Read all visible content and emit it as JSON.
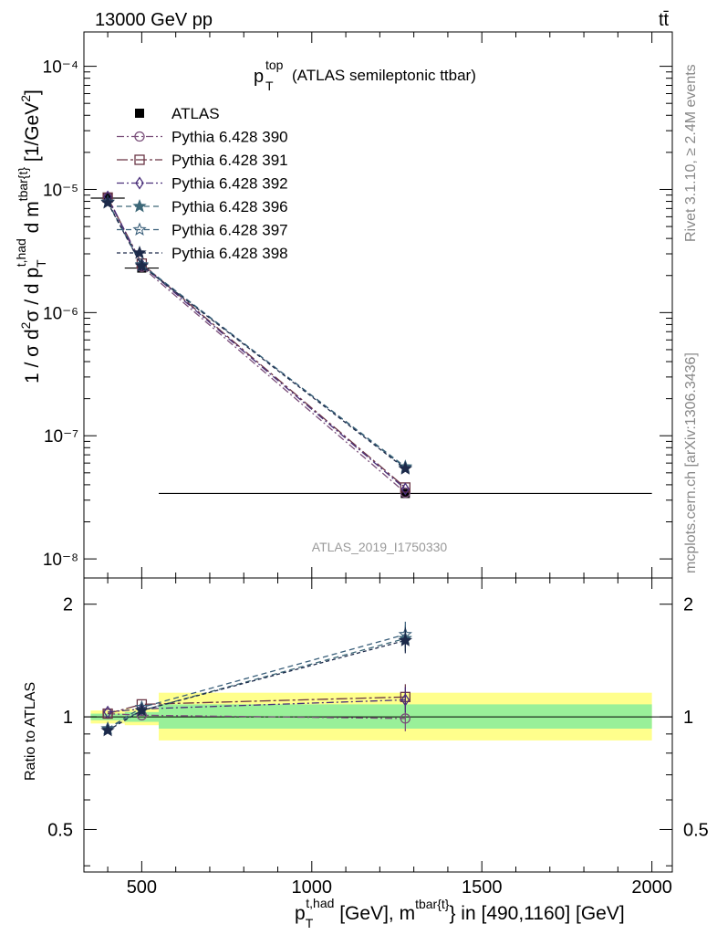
{
  "header": {
    "left": "13000 GeV pp",
    "right": "tt̄"
  },
  "side_labels": {
    "rivet": "Rivet 3.1.10, ≥ 2.4M events",
    "mcplots": "mcplots.cern.ch [arXiv:1306.3436]"
  },
  "plot_title": {
    "main": "p",
    "sup": "top",
    "sub": "T",
    "suffix": "(ATLAS semileptonic ttbar)"
  },
  "watermark": "ATLAS_2019_I1750330",
  "axes": {
    "upper_ylabel": "1 / σ d²σ / d p_T^{t,had} d m^{tbar{t}} [1/GeV²]",
    "lower_ylabel": "Ratio to ATLAS",
    "xlabel": "p_T^{t,had} [GeV], m^{tbar{t}} in [490,1160] [GeV]",
    "x_ticks": [
      "500",
      "1000",
      "1500",
      "2000"
    ],
    "upper_y_ticks": [
      "10⁻⁸",
      "10⁻⁷",
      "10⁻⁶",
      "10⁻⁵",
      "10⁻⁴"
    ],
    "lower_y_ticks": [
      "0.5",
      "1",
      "2"
    ]
  },
  "chart_data": [
    {
      "type": "scatter",
      "panel": "main",
      "log_y": true,
      "xlim": [
        330,
        2060
      ],
      "ylim": [
        7e-09,
        0.00019
      ],
      "x": [
        400,
        500,
        1275
      ],
      "x_err": [
        [
          350,
          450
        ],
        [
          450,
          550
        ],
        [
          550,
          2000
        ]
      ],
      "series": [
        {
          "name": "ATLAS",
          "values": [
            8.5e-06,
            2.3e-06,
            3.4e-08
          ],
          "color": "#000000",
          "marker": "filled-square",
          "dash": "none"
        },
        {
          "name": "Pythia 6.428 390",
          "values": [
            8.6e-06,
            2.35e-06,
            3.45e-08
          ],
          "color": "#7a4f7a",
          "marker": "open-circle",
          "dash": "dashdot"
        },
        {
          "name": "Pythia 6.428 391",
          "values": [
            8.6e-06,
            2.5e-06,
            3.8e-08
          ],
          "color": "#6a3545",
          "marker": "open-square",
          "dash": "dashdot-long"
        },
        {
          "name": "Pythia 6.428 392",
          "values": [
            8.7e-06,
            2.45e-06,
            3.7e-08
          ],
          "color": "#4a2f7a",
          "marker": "open-diamond",
          "dash": "dashdot"
        },
        {
          "name": "Pythia 6.428 396",
          "values": [
            7.9e-06,
            2.4e-06,
            5.6e-08
          ],
          "color": "#3d6878",
          "marker": "filled-star",
          "dash": "dashed"
        },
        {
          "name": "Pythia 6.428 397",
          "values": [
            7.9e-06,
            2.45e-06,
            5.5e-08
          ],
          "color": "#3a5f7a",
          "marker": "open-star",
          "dash": "dashed"
        },
        {
          "name": "Pythia 6.428 398",
          "values": [
            7.8e-06,
            2.4e-06,
            5.4e-08
          ],
          "color": "#1d2a4a",
          "marker": "filled-star",
          "dash": "short-dash"
        }
      ]
    },
    {
      "type": "scatter",
      "panel": "ratio",
      "log_y": true,
      "ylim": [
        0.385,
        2.35
      ],
      "reference": 1,
      "bands": [
        {
          "x": [
            350,
            450
          ],
          "inner": [
            0.98,
            1.02
          ],
          "outer": [
            0.96,
            1.04
          ]
        },
        {
          "x": [
            450,
            550
          ],
          "inner": [
            0.97,
            1.03
          ],
          "outer": [
            0.95,
            1.05
          ]
        },
        {
          "x": [
            550,
            2000
          ],
          "inner": [
            0.93,
            1.08
          ],
          "outer": [
            0.865,
            1.16
          ]
        }
      ],
      "colors": {
        "inner": "#99f099",
        "outer": "#ffff8c"
      },
      "series": [
        {
          "name": "Pythia 6.428 390",
          "values": [
            1.02,
            1.01,
            0.99
          ]
        },
        {
          "name": "Pythia 6.428 391",
          "values": [
            1.02,
            1.08,
            1.13
          ]
        },
        {
          "name": "Pythia 6.428 392",
          "values": [
            1.03,
            1.05,
            1.11
          ]
        },
        {
          "name": "Pythia 6.428 396",
          "values": [
            0.93,
            1.04,
            1.62
          ]
        },
        {
          "name": "Pythia 6.428 397",
          "values": [
            0.93,
            1.06,
            1.66
          ]
        },
        {
          "name": "Pythia 6.428 398",
          "values": [
            0.92,
            1.04,
            1.6
          ]
        }
      ]
    }
  ]
}
